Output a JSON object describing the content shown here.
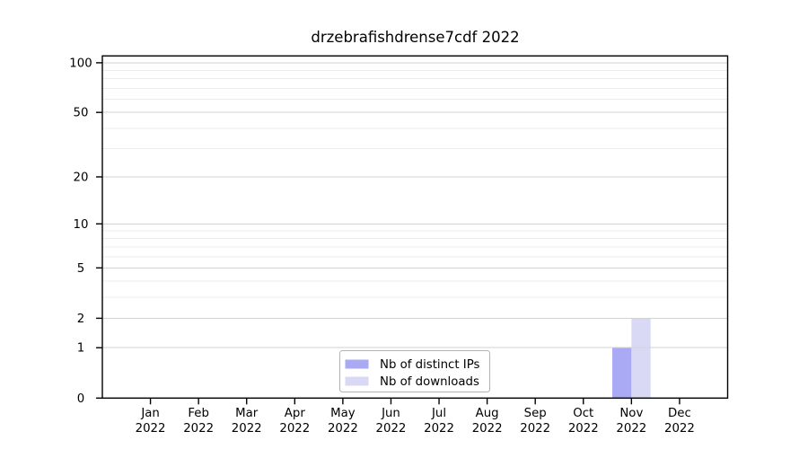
{
  "chart_data": {
    "type": "bar",
    "title": "drzebrafishdrense7cdf 2022",
    "xlabel": "",
    "ylabel": "",
    "categories": [
      {
        "month": "Jan",
        "year": "2022"
      },
      {
        "month": "Feb",
        "year": "2022"
      },
      {
        "month": "Mar",
        "year": "2022"
      },
      {
        "month": "Apr",
        "year": "2022"
      },
      {
        "month": "May",
        "year": "2022"
      },
      {
        "month": "Jun",
        "year": "2022"
      },
      {
        "month": "Jul",
        "year": "2022"
      },
      {
        "month": "Aug",
        "year": "2022"
      },
      {
        "month": "Sep",
        "year": "2022"
      },
      {
        "month": "Oct",
        "year": "2022"
      },
      {
        "month": "Nov",
        "year": "2022"
      },
      {
        "month": "Dec",
        "year": "2022"
      }
    ],
    "series": [
      {
        "name": "Nb of distinct IPs",
        "color": "#a9a9f4",
        "values": [
          0,
          0,
          0,
          0,
          0,
          0,
          0,
          0,
          0,
          0,
          1,
          0
        ]
      },
      {
        "name": "Nb of downloads",
        "color": "#d9d9f6",
        "values": [
          0,
          0,
          0,
          0,
          0,
          0,
          0,
          0,
          0,
          0,
          2,
          0
        ]
      }
    ],
    "y_axis": {
      "scale": "log1p",
      "major_ticks": [
        0,
        1,
        2,
        5,
        10,
        20,
        50,
        100
      ],
      "minor_ticks": [
        3,
        4,
        6,
        7,
        8,
        9,
        30,
        40,
        60,
        70,
        80,
        90
      ],
      "ylim": [
        0,
        110
      ]
    },
    "legend": {
      "position": "bottom-center",
      "entries": [
        "Nb of distinct IPs",
        "Nb of downloads"
      ]
    },
    "grid": true,
    "colors": {
      "background": "#ffffff",
      "frame": "#000000",
      "text": "#000000",
      "grid_major": "#d2d2d2",
      "grid_minor": "#ececec",
      "legend_border": "#b3b3b3"
    }
  }
}
